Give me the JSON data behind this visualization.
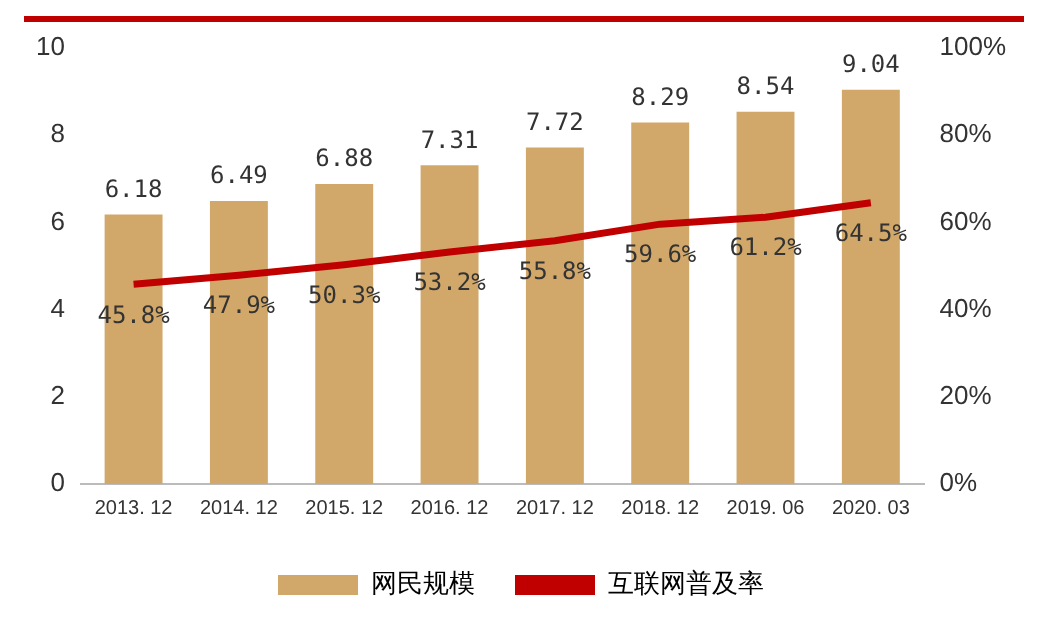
{
  "chart_data": {
    "type": "bar",
    "categories": [
      "2013. 12",
      "2014. 12",
      "2015. 12",
      "2016. 12",
      "2017. 12",
      "2018. 12",
      "2019. 06",
      "2020. 03"
    ],
    "series": [
      {
        "name": "网民规模",
        "color": "#d1a86a",
        "values": [
          6.18,
          6.49,
          6.88,
          7.31,
          7.72,
          8.29,
          8.54,
          9.04
        ],
        "value_labels": [
          "6.18",
          "6.49",
          "6.88",
          "7.31",
          "7.72",
          "8.29",
          "8.54",
          "9.04"
        ]
      },
      {
        "name": "互联网普及率",
        "type": "line",
        "axis": "y2",
        "color": "#c00000",
        "marker": "none",
        "values": [
          45.8,
          47.9,
          50.3,
          53.2,
          55.8,
          59.6,
          61.2,
          64.5
        ],
        "value_labels": [
          "45.8%",
          "47.9%",
          "50.3%",
          "53.2%",
          "55.8%",
          "59.6%",
          "61.2%",
          "64.5%"
        ]
      }
    ],
    "ylim": [
      0,
      10
    ],
    "yticks": [
      0,
      2,
      4,
      6,
      8,
      10
    ],
    "y2lim": [
      0,
      100
    ],
    "y2ticks": [
      {
        "value": 0,
        "label": "0%"
      },
      {
        "value": 20,
        "label": "20%"
      },
      {
        "value": 40,
        "label": "40%"
      },
      {
        "value": 60,
        "label": "60%"
      },
      {
        "value": 80,
        "label": "80%"
      },
      {
        "value": 100,
        "label": "100%"
      }
    ],
    "grid": false,
    "legend": "bottom"
  }
}
